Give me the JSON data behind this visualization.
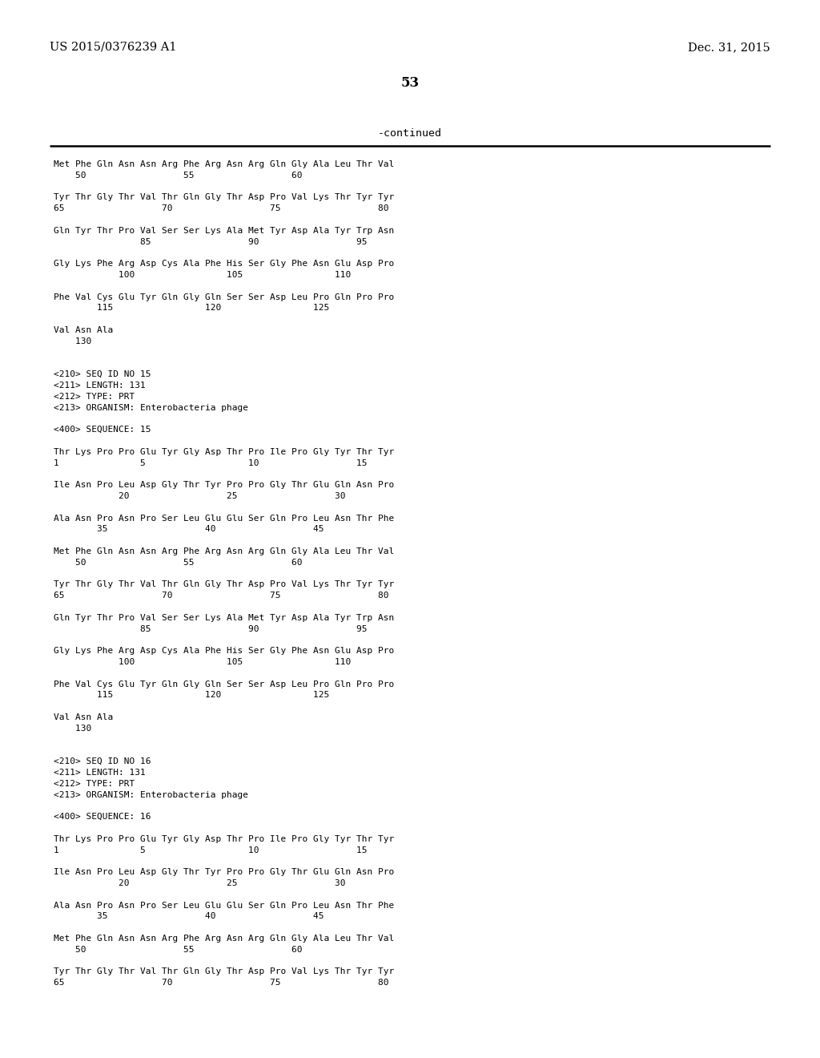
{
  "header_left": "US 2015/0376239 A1",
  "header_right": "Dec. 31, 2015",
  "page_number": "53",
  "continued_label": "-continued",
  "background_color": "#ffffff",
  "text_color": "#000000",
  "font_size_header": 10.5,
  "font_size_page": 12,
  "font_size_continued": 9.5,
  "font_size_body": 8.0,
  "lines": [
    "Met Phe Gln Asn Asn Arg Phe Arg Asn Arg Gln Gly Ala Leu Thr Val",
    "    50                  55                  60",
    "",
    "Tyr Thr Gly Thr Val Thr Gln Gly Thr Asp Pro Val Lys Thr Tyr Tyr",
    "65                  70                  75                  80",
    "",
    "Gln Tyr Thr Pro Val Ser Ser Lys Ala Met Tyr Asp Ala Tyr Trp Asn",
    "                85                  90                  95",
    "",
    "Gly Lys Phe Arg Asp Cys Ala Phe His Ser Gly Phe Asn Glu Asp Pro",
    "            100                 105                 110",
    "",
    "Phe Val Cys Glu Tyr Gln Gly Gln Ser Ser Asp Leu Pro Gln Pro Pro",
    "        115                 120                 125",
    "",
    "Val Asn Ala",
    "    130",
    "",
    "",
    "<210> SEQ ID NO 15",
    "<211> LENGTH: 131",
    "<212> TYPE: PRT",
    "<213> ORGANISM: Enterobacteria phage",
    "",
    "<400> SEQUENCE: 15",
    "",
    "Thr Lys Pro Pro Glu Tyr Gly Asp Thr Pro Ile Pro Gly Tyr Thr Tyr",
    "1               5                   10                  15",
    "",
    "Ile Asn Pro Leu Asp Gly Thr Tyr Pro Pro Gly Thr Glu Gln Asn Pro",
    "            20                  25                  30",
    "",
    "Ala Asn Pro Asn Pro Ser Leu Glu Glu Ser Gln Pro Leu Asn Thr Phe",
    "        35                  40                  45",
    "",
    "Met Phe Gln Asn Asn Arg Phe Arg Asn Arg Gln Gly Ala Leu Thr Val",
    "    50                  55                  60",
    "",
    "Tyr Thr Gly Thr Val Thr Gln Gly Thr Asp Pro Val Lys Thr Tyr Tyr",
    "65                  70                  75                  80",
    "",
    "Gln Tyr Thr Pro Val Ser Ser Lys Ala Met Tyr Asp Ala Tyr Trp Asn",
    "                85                  90                  95",
    "",
    "Gly Lys Phe Arg Asp Cys Ala Phe His Ser Gly Phe Asn Glu Asp Pro",
    "            100                 105                 110",
    "",
    "Phe Val Cys Glu Tyr Gln Gly Gln Ser Ser Asp Leu Pro Gln Pro Pro",
    "        115                 120                 125",
    "",
    "Val Asn Ala",
    "    130",
    "",
    "",
    "<210> SEQ ID NO 16",
    "<211> LENGTH: 131",
    "<212> TYPE: PRT",
    "<213> ORGANISM: Enterobacteria phage",
    "",
    "<400> SEQUENCE: 16",
    "",
    "Thr Lys Pro Pro Glu Tyr Gly Asp Thr Pro Ile Pro Gly Tyr Thr Tyr",
    "1               5                   10                  15",
    "",
    "Ile Asn Pro Leu Asp Gly Thr Tyr Pro Pro Gly Thr Glu Gln Asn Pro",
    "            20                  25                  30",
    "",
    "Ala Asn Pro Asn Pro Ser Leu Glu Glu Ser Gln Pro Leu Asn Thr Phe",
    "        35                  40                  45",
    "",
    "Met Phe Gln Asn Asn Arg Phe Arg Asn Arg Gln Gly Ala Leu Thr Val",
    "    50                  55                  60",
    "",
    "Tyr Thr Gly Thr Val Thr Gln Gly Thr Asp Pro Val Lys Thr Tyr Tyr",
    "65                  70                  75                  80"
  ]
}
